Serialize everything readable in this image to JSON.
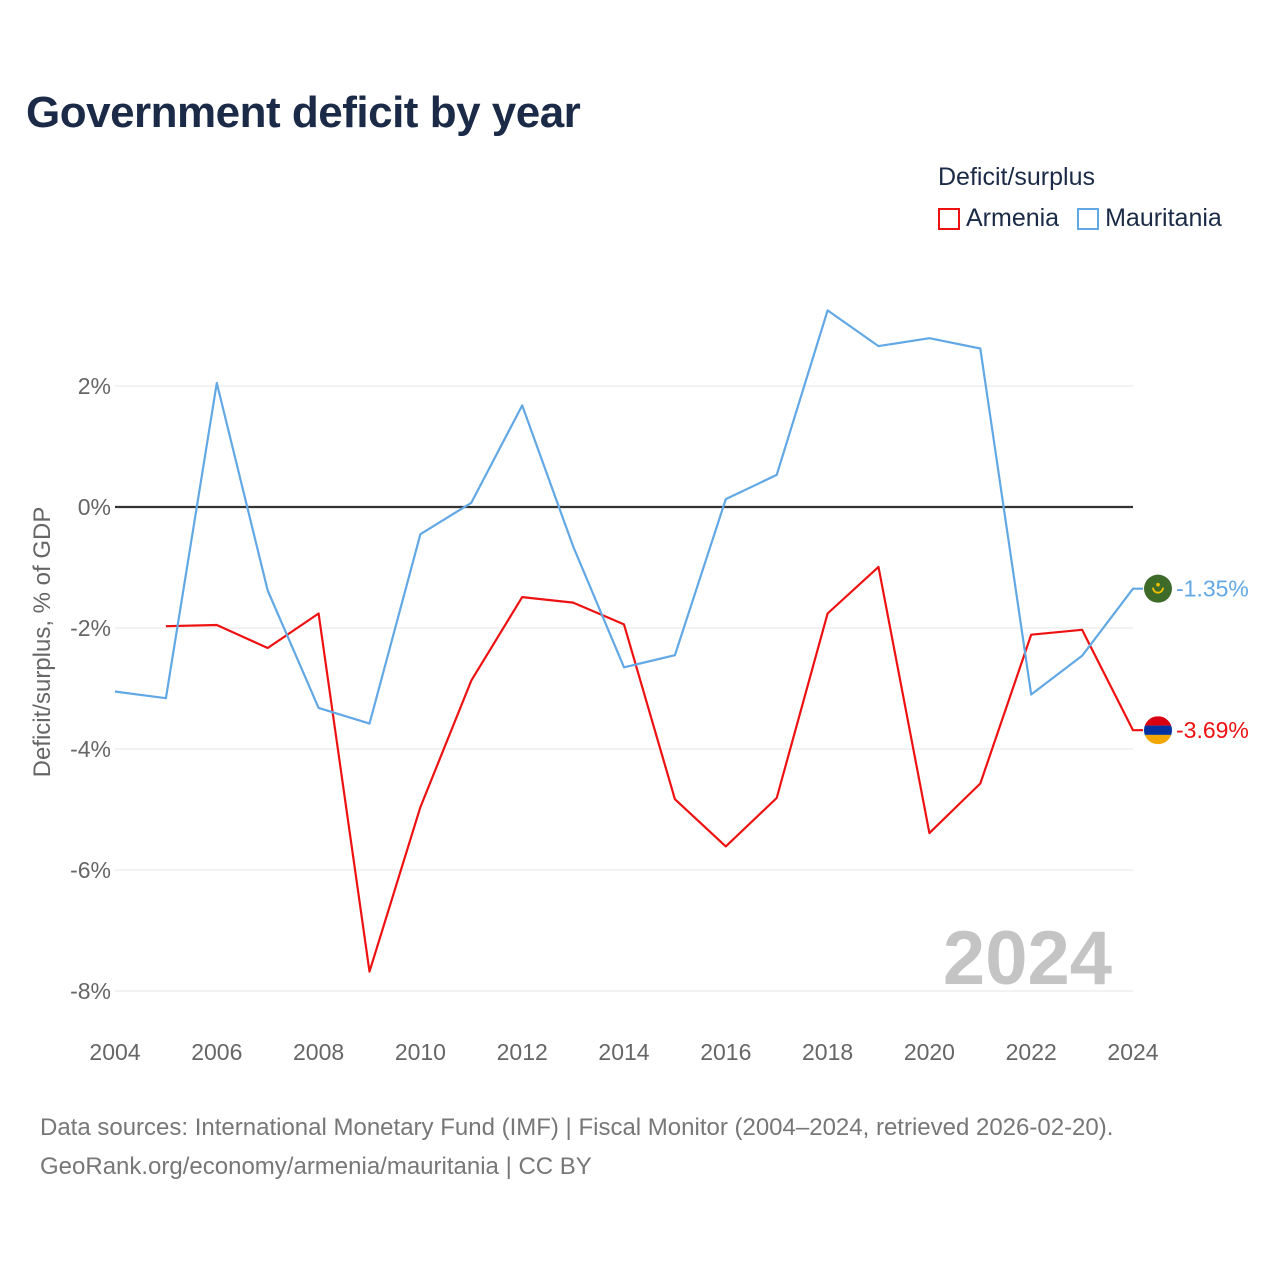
{
  "title": "Government deficit by year",
  "legend": {
    "title": "Deficit/surplus",
    "items": [
      {
        "name": "Armenia",
        "color": "#ee1111"
      },
      {
        "name": "Mauritania",
        "color": "#62a8e5"
      }
    ]
  },
  "watermark_year": "2024",
  "footer": {
    "sources": "Data sources: International Monetary Fund (IMF) | Fiscal Monitor (2004–2024, retrieved 2026-02-20).",
    "credit": "GeoRank.org/economy/armenia/mauritania | CC BY"
  },
  "chart_data": {
    "type": "line",
    "title": "Government deficit by year",
    "xlabel": "",
    "ylabel": "Deficit/surplus, % of GDP",
    "xlim": [
      2004,
      2024
    ],
    "ylim": [
      -8.2,
      3.8
    ],
    "x_ticks": [
      2004,
      2006,
      2008,
      2010,
      2012,
      2014,
      2016,
      2018,
      2020,
      2022,
      2024
    ],
    "y_ticks": [
      -8,
      -6,
      -4,
      -2,
      0,
      2
    ],
    "y_tick_labels": [
      "-8%",
      "-6%",
      "-4%",
      "-2%",
      "0%",
      "2%"
    ],
    "series": [
      {
        "name": "Armenia",
        "color": "#ee1111",
        "end_label": "-3.69%",
        "x": [
          2005,
          2006,
          2007,
          2008,
          2009,
          2010,
          2011,
          2012,
          2013,
          2014,
          2015,
          2016,
          2017,
          2018,
          2019,
          2020,
          2021,
          2022,
          2023,
          2024
        ],
        "values": [
          -1.97,
          -1.95,
          -2.33,
          -1.76,
          -7.68,
          -4.96,
          -2.87,
          -1.49,
          -1.58,
          -1.94,
          -4.83,
          -5.61,
          -4.81,
          -1.76,
          -0.99,
          -5.39,
          -4.57,
          -2.11,
          -2.03,
          -3.69
        ]
      },
      {
        "name": "Mauritania",
        "color": "#62a8e5",
        "end_label": "-1.35%",
        "x": [
          2004,
          2005,
          2006,
          2007,
          2008,
          2009,
          2010,
          2011,
          2012,
          2013,
          2014,
          2015,
          2016,
          2017,
          2018,
          2019,
          2020,
          2021,
          2022,
          2023,
          2024
        ],
        "values": [
          -3.05,
          -3.16,
          2.05,
          -1.38,
          -3.32,
          -3.58,
          -0.45,
          0.07,
          1.68,
          -0.65,
          -2.65,
          -2.45,
          0.13,
          0.53,
          3.25,
          2.66,
          2.79,
          2.62,
          -3.1,
          -2.46,
          -1.35
        ]
      }
    ]
  }
}
